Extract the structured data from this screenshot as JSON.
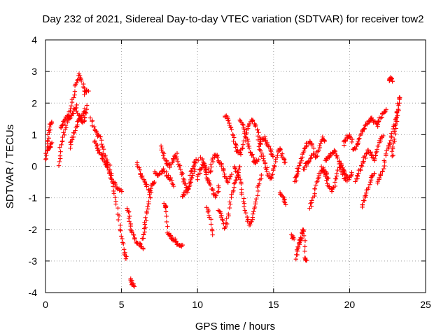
{
  "chart_data": {
    "type": "scatter",
    "title": "Day 232 of 2021, Sidereal Day-to-day VTEC variation (SDTVAR) for receiver tow2",
    "xlabel": "GPS time / hours",
    "ylabel": "SDTVAR / TECUs",
    "xlim": [
      0,
      25
    ],
    "ylim": [
      -4,
      4
    ],
    "xticks": [
      0,
      5,
      10,
      15,
      20,
      25
    ],
    "yticks": [
      -4,
      -3,
      -2,
      -1,
      0,
      1,
      2,
      3,
      4
    ],
    "grid": true,
    "marker": "plus",
    "color": "#ff0000",
    "tracks": [
      [
        [
          0.0,
          0.2
        ],
        [
          0.1,
          0.6
        ],
        [
          0.2,
          1.0
        ],
        [
          0.3,
          1.3
        ],
        [
          0.4,
          1.4
        ]
      ],
      [
        [
          0.1,
          0.5
        ],
        [
          0.3,
          0.6
        ],
        [
          0.4,
          0.7
        ]
      ],
      [
        [
          0.9,
          0.0
        ],
        [
          1.0,
          0.6
        ],
        [
          1.2,
          1.0
        ],
        [
          1.4,
          1.4
        ],
        [
          1.6,
          1.7
        ],
        [
          1.8,
          2.1
        ],
        [
          2.0,
          2.6
        ],
        [
          2.2,
          2.9
        ],
        [
          2.4,
          2.7
        ],
        [
          2.6,
          2.3
        ],
        [
          2.8,
          2.4
        ]
      ],
      [
        [
          1.0,
          1.2
        ],
        [
          1.2,
          1.4
        ],
        [
          1.4,
          1.6
        ],
        [
          1.6,
          1.5
        ],
        [
          1.8,
          1.7
        ],
        [
          2.0,
          1.9
        ],
        [
          2.2,
          1.6
        ],
        [
          2.4,
          1.4
        ],
        [
          2.6,
          1.5
        ],
        [
          2.7,
          1.9
        ]
      ],
      [
        [
          1.6,
          0.6
        ],
        [
          1.8,
          0.9
        ],
        [
          2.0,
          1.2
        ],
        [
          2.2,
          1.5
        ],
        [
          2.4,
          1.6
        ],
        [
          2.6,
          1.8
        ]
      ],
      [
        [
          3.0,
          1.5
        ],
        [
          3.2,
          1.2
        ],
        [
          3.4,
          1.0
        ],
        [
          3.6,
          0.9
        ],
        [
          3.8,
          0.5
        ],
        [
          4.0,
          0.2
        ],
        [
          4.2,
          0.0
        ],
        [
          4.4,
          -0.4
        ],
        [
          4.6,
          -1.0
        ],
        [
          4.8,
          -1.6
        ],
        [
          5.0,
          -2.2
        ],
        [
          5.2,
          -2.7
        ],
        [
          5.3,
          -2.9
        ]
      ],
      [
        [
          3.2,
          0.8
        ],
        [
          3.4,
          0.6
        ],
        [
          3.6,
          0.4
        ],
        [
          3.8,
          0.2
        ],
        [
          4.0,
          0.0
        ],
        [
          4.2,
          -0.2
        ],
        [
          4.4,
          -0.5
        ],
        [
          4.6,
          -0.6
        ],
        [
          4.8,
          -0.7
        ],
        [
          5.0,
          -0.8
        ]
      ],
      [
        [
          5.6,
          -3.6
        ],
        [
          5.7,
          -3.7
        ],
        [
          5.8,
          -3.8
        ]
      ],
      [
        [
          5.4,
          -1.3
        ],
        [
          5.5,
          -1.6
        ],
        [
          5.6,
          -2.0
        ],
        [
          5.8,
          -2.2
        ],
        [
          6.0,
          -2.4
        ],
        [
          6.2,
          -2.5
        ],
        [
          6.4,
          -2.6
        ]
      ],
      [
        [
          6.4,
          -2.3
        ],
        [
          6.5,
          -2.0
        ],
        [
          6.6,
          -1.6
        ],
        [
          6.8,
          -1.2
        ],
        [
          6.9,
          -0.8
        ]
      ],
      [
        [
          6.0,
          0.1
        ],
        [
          6.2,
          -0.2
        ],
        [
          6.4,
          -0.4
        ],
        [
          6.6,
          -0.6
        ],
        [
          6.8,
          -0.8
        ],
        [
          7.0,
          -0.6
        ],
        [
          7.2,
          -0.5
        ]
      ],
      [
        [
          7.2,
          -0.2
        ],
        [
          7.4,
          -0.3
        ],
        [
          7.6,
          -0.2
        ],
        [
          7.8,
          -0.1
        ],
        [
          8.0,
          -0.3
        ],
        [
          8.2,
          -0.4
        ],
        [
          8.4,
          -0.6
        ]
      ],
      [
        [
          7.6,
          0.6
        ],
        [
          7.8,
          0.3
        ],
        [
          8.0,
          0.1
        ],
        [
          8.2,
          0.0
        ],
        [
          8.4,
          0.2
        ],
        [
          8.6,
          0.4
        ],
        [
          8.8,
          0.0
        ],
        [
          9.0,
          -0.3
        ],
        [
          9.2,
          -0.6
        ],
        [
          9.4,
          -0.8
        ],
        [
          9.6,
          -0.2
        ],
        [
          9.8,
          0.1
        ],
        [
          10.0,
          0.2
        ]
      ],
      [
        [
          7.8,
          -1.2
        ],
        [
          7.9,
          -1.3
        ],
        [
          8.0,
          -2.1
        ],
        [
          8.2,
          -2.2
        ],
        [
          8.4,
          -2.3
        ],
        [
          8.6,
          -2.4
        ],
        [
          8.8,
          -2.5
        ],
        [
          9.0,
          -2.5
        ]
      ],
      [
        [
          9.0,
          -1.0
        ],
        [
          9.2,
          -0.8
        ],
        [
          9.4,
          -0.7
        ],
        [
          9.6,
          -0.4
        ],
        [
          9.8,
          -0.1
        ]
      ],
      [
        [
          10.0,
          -0.4
        ],
        [
          10.2,
          -0.1
        ],
        [
          10.4,
          0.1
        ],
        [
          10.6,
          -0.3
        ],
        [
          10.8,
          -0.5
        ],
        [
          11.0,
          -0.8
        ],
        [
          11.2,
          -1.0
        ],
        [
          11.4,
          -0.6
        ]
      ],
      [
        [
          10.6,
          -1.3
        ],
        [
          10.8,
          -1.6
        ],
        [
          11.0,
          -2.2
        ]
      ],
      [
        [
          10.2,
          0.3
        ],
        [
          10.5,
          0.0
        ],
        [
          10.8,
          -0.2
        ],
        [
          11.0,
          0.2
        ],
        [
          11.2,
          0.4
        ],
        [
          11.4,
          0.2
        ],
        [
          11.6,
          0.0
        ],
        [
          11.8,
          -0.3
        ],
        [
          12.0,
          -0.5
        ],
        [
          12.2,
          -0.3
        ]
      ],
      [
        [
          11.8,
          1.6
        ],
        [
          12.0,
          1.5
        ],
        [
          12.2,
          1.2
        ],
        [
          12.4,
          0.8
        ],
        [
          12.6,
          0.5
        ],
        [
          12.8,
          0.4
        ],
        [
          13.0,
          0.6
        ],
        [
          13.2,
          1.0
        ],
        [
          13.4,
          1.3
        ],
        [
          13.6,
          1.5
        ],
        [
          13.8,
          1.3
        ],
        [
          14.0,
          1.0
        ],
        [
          14.2,
          0.7
        ]
      ],
      [
        [
          11.4,
          -1.4
        ],
        [
          11.6,
          -1.6
        ],
        [
          11.8,
          -2.0
        ],
        [
          12.0,
          -1.6
        ],
        [
          12.2,
          -1.0
        ],
        [
          12.4,
          -0.6
        ],
        [
          12.6,
          -0.3
        ],
        [
          12.8,
          0.0
        ]
      ],
      [
        [
          12.4,
          0.0
        ],
        [
          12.6,
          -0.2
        ],
        [
          12.8,
          -0.5
        ],
        [
          13.0,
          -1.0
        ],
        [
          13.2,
          -1.5
        ],
        [
          13.4,
          -1.9
        ],
        [
          13.6,
          -1.6
        ],
        [
          13.8,
          -1.2
        ],
        [
          14.0,
          -0.7
        ],
        [
          14.2,
          -0.3
        ]
      ],
      [
        [
          12.8,
          1.5
        ],
        [
          13.0,
          1.2
        ],
        [
          13.2,
          0.9
        ],
        [
          13.4,
          0.6
        ],
        [
          13.6,
          0.3
        ],
        [
          13.8,
          0.1
        ],
        [
          14.0,
          0.2
        ]
      ],
      [
        [
          14.0,
          0.8
        ],
        [
          14.2,
          0.4
        ],
        [
          14.4,
          0.1
        ],
        [
          14.6,
          -0.2
        ],
        [
          14.8,
          -0.4
        ],
        [
          15.0,
          -0.1
        ],
        [
          15.2,
          0.3
        ],
        [
          15.4,
          0.6
        ],
        [
          15.6,
          0.3
        ],
        [
          15.8,
          0.1
        ]
      ],
      [
        [
          14.2,
          0.8
        ],
        [
          14.4,
          0.9
        ],
        [
          14.6,
          0.7
        ],
        [
          14.8,
          0.5
        ],
        [
          15.0,
          0.3
        ]
      ],
      [
        [
          15.4,
          -0.8
        ],
        [
          15.6,
          -1.0
        ],
        [
          15.8,
          -1.2
        ]
      ],
      [
        [
          16.2,
          -2.2
        ],
        [
          16.3,
          -2.3
        ]
      ],
      [
        [
          16.5,
          -2.9
        ],
        [
          16.6,
          -2.6
        ],
        [
          16.7,
          -2.4
        ],
        [
          16.8,
          -2.3
        ],
        [
          16.9,
          -2.1
        ],
        [
          17.0,
          -2.0
        ],
        [
          17.1,
          -2.9
        ],
        [
          17.2,
          -3.0
        ]
      ],
      [
        [
          16.4,
          -0.5
        ],
        [
          16.5,
          -0.3
        ],
        [
          16.6,
          -0.1
        ],
        [
          16.8,
          0.2
        ],
        [
          17.0,
          0.5
        ],
        [
          17.2,
          0.7
        ],
        [
          17.4,
          0.8
        ],
        [
          17.6,
          0.6
        ]
      ],
      [
        [
          17.4,
          -1.3
        ],
        [
          17.6,
          -1.0
        ],
        [
          17.8,
          -0.6
        ],
        [
          18.0,
          -0.3
        ],
        [
          18.2,
          -0.1
        ],
        [
          18.4,
          -0.2
        ],
        [
          18.6,
          -0.4
        ]
      ],
      [
        [
          17.0,
          -0.1
        ],
        [
          17.2,
          0.1
        ],
        [
          17.4,
          0.2
        ],
        [
          17.6,
          0.4
        ],
        [
          17.8,
          0.3
        ],
        [
          18.0,
          0.6
        ],
        [
          18.2,
          0.9
        ],
        [
          18.4,
          0.8
        ]
      ],
      [
        [
          18.2,
          0.0
        ],
        [
          18.4,
          -0.3
        ],
        [
          18.6,
          -0.6
        ],
        [
          18.8,
          -0.8
        ],
        [
          19.0,
          -0.6
        ],
        [
          19.2,
          -0.2
        ],
        [
          19.4,
          0.1
        ],
        [
          19.6,
          -0.1
        ],
        [
          19.8,
          -0.3
        ],
        [
          20.0,
          -0.4
        ],
        [
          20.2,
          -0.2
        ]
      ],
      [
        [
          18.4,
          0.2
        ],
        [
          18.6,
          0.3
        ],
        [
          18.8,
          0.4
        ],
        [
          19.0,
          0.5
        ],
        [
          19.2,
          0.3
        ],
        [
          19.4,
          0.0
        ],
        [
          19.6,
          -0.3
        ],
        [
          19.8,
          -0.5
        ]
      ],
      [
        [
          19.6,
          0.7
        ],
        [
          19.8,
          0.9
        ],
        [
          20.0,
          1.0
        ],
        [
          20.2,
          0.8
        ]
      ],
      [
        [
          20.2,
          0.5
        ],
        [
          20.4,
          0.6
        ],
        [
          20.6,
          0.8
        ],
        [
          20.8,
          1.1
        ],
        [
          21.0,
          1.2
        ],
        [
          21.2,
          1.4
        ],
        [
          21.4,
          1.5
        ],
        [
          21.6,
          1.4
        ],
        [
          21.8,
          1.3
        ],
        [
          22.0,
          1.5
        ],
        [
          22.2,
          1.7
        ],
        [
          22.4,
          1.8
        ]
      ],
      [
        [
          20.4,
          -0.5
        ],
        [
          20.6,
          -0.2
        ],
        [
          20.8,
          0.0
        ],
        [
          21.0,
          0.3
        ],
        [
          21.2,
          0.5
        ],
        [
          21.4,
          0.4
        ],
        [
          21.6,
          0.2
        ],
        [
          21.8,
          0.5
        ],
        [
          22.0,
          0.8
        ],
        [
          22.2,
          1.0
        ]
      ],
      [
        [
          20.8,
          -1.3
        ],
        [
          21.0,
          -1.0
        ],
        [
          21.2,
          -0.7
        ],
        [
          21.4,
          -0.4
        ],
        [
          21.6,
          -0.2
        ]
      ],
      [
        [
          21.8,
          -0.5
        ],
        [
          22.0,
          -0.3
        ],
        [
          22.2,
          -0.1
        ],
        [
          22.4,
          0.4
        ],
        [
          22.6,
          0.7
        ],
        [
          22.8,
          1.0
        ],
        [
          23.0,
          1.4
        ],
        [
          23.2,
          1.8
        ]
      ],
      [
        [
          22.6,
          2.7
        ],
        [
          22.7,
          2.8
        ],
        [
          22.8,
          2.7
        ]
      ],
      [
        [
          22.8,
          0.3
        ],
        [
          22.9,
          0.7
        ],
        [
          23.0,
          1.2
        ],
        [
          23.1,
          1.6
        ],
        [
          23.2,
          2.0
        ],
        [
          23.3,
          2.2
        ]
      ]
    ]
  }
}
